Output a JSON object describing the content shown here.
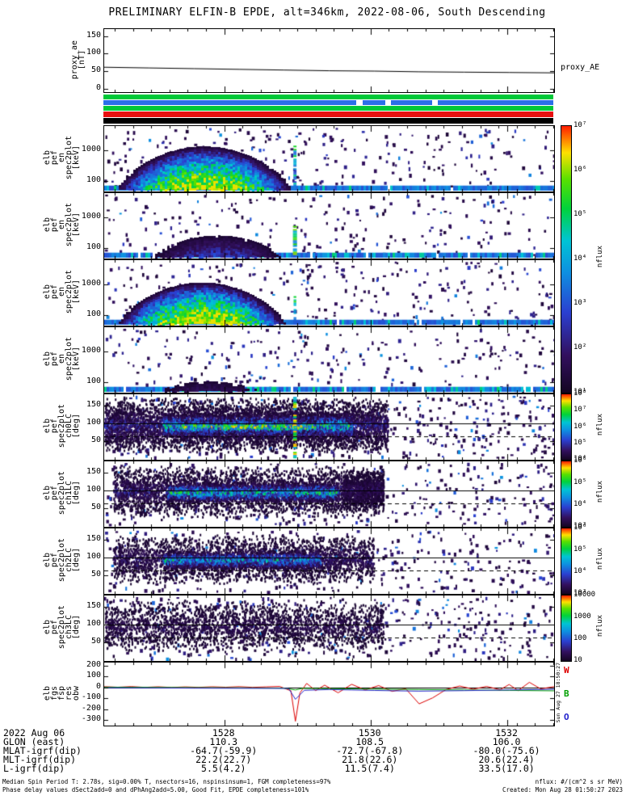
{
  "title": "PRELIMINARY ELFIN-B EPDE, alt=346km, 2022-08-06, South Descending",
  "proxy_right_label": "proxy_AE",
  "side_timestamp": "Sun Aug 27 18:50:27",
  "strips": [
    {
      "name": "quality-bar-green-1",
      "color": "#00c838",
      "segments": [
        [
          0,
          1
        ]
      ]
    },
    {
      "name": "quality-bar-blue",
      "color": "#2a6fe8",
      "segments": [
        [
          0,
          0.562
        ],
        [
          0.576,
          0.626
        ],
        [
          0.64,
          0.73
        ],
        [
          0.744,
          1
        ]
      ]
    },
    {
      "name": "quality-bar-green-2",
      "color": "#00c838",
      "segments": [
        [
          0,
          1
        ]
      ]
    },
    {
      "name": "quality-bar-red",
      "color": "#e81010",
      "segments": [
        [
          0,
          1
        ]
      ]
    },
    {
      "name": "quality-bar-black",
      "color": "#000000",
      "segments": [
        [
          0,
          1
        ]
      ]
    }
  ],
  "xaxis": {
    "date_label": "2022 Aug 06",
    "ticks": [
      {
        "label": "1528",
        "f": 0.267
      },
      {
        "label": "1530",
        "f": 0.592
      },
      {
        "label": "1532",
        "f": 0.896
      }
    ],
    "rows": [
      {
        "label": "GLON (east)",
        "values": [
          "110.3",
          "108.5",
          "106.0"
        ]
      },
      {
        "label": "MLAT-igrf(dip)",
        "values": [
          "-64.7(-59.9)",
          "-72.7(-67.8)",
          "-80.0(-75.6)"
        ]
      },
      {
        "label": "MLT-igrf(dip)",
        "values": [
          "22.2(22.7)",
          "21.8(22.6)",
          "20.6(22.4)"
        ]
      },
      {
        "label": "L-igrf(dip)",
        "values": [
          "5.5(4.2)",
          "11.5(7.4)",
          "33.5(17.0)"
        ]
      }
    ]
  },
  "colorbars": [
    {
      "span": [
        "p1",
        "p4"
      ],
      "ticks": [
        "10⁷",
        "10⁶",
        "10⁵",
        "10⁴",
        "10³",
        "10²",
        "10¹"
      ],
      "label": "nflux"
    },
    {
      "span": [
        "p5",
        "p5"
      ],
      "ticks": [
        "10⁸",
        "10⁷",
        "10⁶",
        "10⁵",
        "10⁴"
      ],
      "label": "nflux"
    },
    {
      "span": [
        "p6",
        "p6"
      ],
      "ticks": [
        "10⁶",
        "10⁵",
        "10⁴",
        "10³"
      ],
      "label": "nflux"
    },
    {
      "span": [
        "p7",
        "p7"
      ],
      "ticks": [
        "10⁶",
        "10⁵",
        "10⁴",
        "10³"
      ],
      "label": "nflux"
    },
    {
      "span": [
        "p8",
        "p8"
      ],
      "ticks": [
        "10000",
        "1000",
        "100",
        "10"
      ],
      "label": "nflux"
    }
  ],
  "footer": {
    "line1": "Median Spin Period T: 2.78s, sig=0.00% T, nsectors=16, nspinsinsum=1, FGM completeness=97%",
    "line2": "Phase delay values dSect2add=0 and dPhAng2add=5.00, Good Fit, EPDE completeness=101%",
    "units": "nflux: #/(cm^2 s sr MeV)",
    "created": "Created: Mon Aug 28 01:50:27 2023"
  },
  "chart_data": [
    {
      "id": "proxy",
      "type": "line",
      "ylabel_words": [
        "proxy_ae",
        "[nT]"
      ],
      "ylim": [
        -10,
        170
      ],
      "yticks": [
        {
          "label": "150",
          "v": 150
        },
        {
          "label": "100",
          "v": 100
        },
        {
          "label": "50",
          "v": 50
        },
        {
          "label": "0",
          "v": 0
        }
      ],
      "series": [
        {
          "name": "proxy_AE",
          "color": "#000000",
          "points": [
            [
              0,
              61
            ],
            [
              0.1,
              59
            ],
            [
              0.2,
              57
            ],
            [
              0.3,
              55
            ],
            [
              0.4,
              53
            ],
            [
              0.5,
              51
            ],
            [
              0.6,
              50
            ],
            [
              0.7,
              48
            ],
            [
              0.8,
              47
            ],
            [
              0.9,
              46
            ],
            [
              1,
              45
            ]
          ]
        }
      ]
    },
    {
      "id": "p1",
      "type": "heatmap",
      "seed": 11,
      "ylabel_words": [
        "elb",
        "pef",
        "en",
        "spec2plot",
        "[keV]"
      ],
      "yscale": "log",
      "yunits": "keV",
      "ylim": [
        50,
        6000
      ],
      "yticks": [
        {
          "label": "1000",
          "f": 0.37
        },
        {
          "label": "100",
          "f": 0.845
        }
      ],
      "features": [
        {
          "type": "speckle",
          "density": 0.055
        },
        {
          "type": "bband",
          "y0": 0.91,
          "cyan": 0.1
        },
        {
          "type": "dome",
          "cx": 0.22,
          "rx": 0.205,
          "top": 0.28,
          "peak": 0.92
        },
        {
          "type": "vstripe",
          "x": 0.424,
          "w": 0.007,
          "y0": 0.3,
          "y1": 0.92,
          "peak": 0.72
        }
      ]
    },
    {
      "id": "p2",
      "type": "heatmap",
      "seed": 22,
      "ylabel_words": [
        "elb",
        "pef",
        "en",
        "spec2plot",
        "[keV]"
      ],
      "yscale": "log",
      "yunits": "keV",
      "ylim": [
        50,
        6000
      ],
      "yticks": [
        {
          "label": "1000",
          "f": 0.37
        },
        {
          "label": "100",
          "f": 0.845
        }
      ],
      "features": [
        {
          "type": "speckle",
          "density": 0.045
        },
        {
          "type": "bband",
          "y0": 0.91,
          "cyan": 0.2
        },
        {
          "type": "dome",
          "cx": 0.25,
          "rx": 0.16,
          "top": 0.58,
          "peak": 0.42
        },
        {
          "type": "vstripe",
          "x": 0.424,
          "w": 0.009,
          "y0": 0.5,
          "y1": 0.93,
          "peak": 0.9
        }
      ]
    },
    {
      "id": "p3",
      "type": "heatmap",
      "seed": 33,
      "ylabel_words": [
        "elb",
        "pef",
        "en",
        "spec2plot",
        "[keV]"
      ],
      "yscale": "log",
      "yunits": "keV",
      "ylim": [
        50,
        6000
      ],
      "yticks": [
        {
          "label": "1000",
          "f": 0.37
        },
        {
          "label": "100",
          "f": 0.845
        }
      ],
      "features": [
        {
          "type": "speckle",
          "density": 0.055
        },
        {
          "type": "bband",
          "y0": 0.91,
          "cyan": 0.12
        },
        {
          "type": "dome",
          "cx": 0.215,
          "rx": 0.195,
          "top": 0.31,
          "peak": 0.95
        },
        {
          "type": "vstripe",
          "x": 0.424,
          "w": 0.006,
          "y0": 0.55,
          "y1": 0.92,
          "peak": 0.8
        }
      ]
    },
    {
      "id": "p4",
      "type": "heatmap",
      "seed": 44,
      "ylabel_words": [
        "elb",
        "pef",
        "en",
        "spec2plot",
        "[keV]"
      ],
      "yscale": "log",
      "yunits": "keV",
      "ylim": [
        50,
        6000
      ],
      "yticks": [
        {
          "label": "1000",
          "f": 0.37
        },
        {
          "label": "100",
          "f": 0.845
        }
      ],
      "features": [
        {
          "type": "speckle",
          "density": 0.05
        },
        {
          "type": "bband",
          "y0": 0.91,
          "cyan": 0.28
        },
        {
          "type": "dome",
          "cx": 0.23,
          "rx": 0.14,
          "top": 0.76,
          "peak": 0.3
        }
      ]
    },
    {
      "id": "p5",
      "type": "heatmap",
      "seed": 55,
      "ylabel_words": [
        "elb",
        "pef",
        "spec2plot",
        "ch0LC",
        "[deg]"
      ],
      "yunits": "deg",
      "ylim": [
        0,
        180
      ],
      "yticks": [
        {
          "label": "150",
          "f": 0.167
        },
        {
          "label": "100",
          "f": 0.444
        },
        {
          "label": "50",
          "f": 0.722
        }
      ],
      "features": [
        {
          "type": "speckle",
          "density": 0.1
        },
        {
          "type": "pband",
          "x0": 0.0,
          "x1": 0.63,
          "yc": 0.46,
          "yr": 0.42,
          "density": 1.0,
          "peak": 0.32
        },
        {
          "type": "pband",
          "x0": 0.13,
          "x1": 0.55,
          "yc": 0.47,
          "yr": 0.2,
          "density": 2.0,
          "peak": 0.62
        },
        {
          "type": "pband",
          "x0": 0.17,
          "x1": 0.47,
          "yc": 0.48,
          "yr": 0.1,
          "density": 2.2,
          "peak": 0.78
        },
        {
          "type": "vstripe",
          "x": 0.424,
          "w": 0.008,
          "y0": 0.04,
          "y1": 0.96,
          "peak": 0.88
        },
        {
          "type": "hline",
          "y": 0.444
        },
        {
          "type": "hline",
          "y": 0.64,
          "dash": true
        }
      ]
    },
    {
      "id": "p6",
      "type": "heatmap",
      "seed": 66,
      "ylabel_words": [
        "elb",
        "pef",
        "spec2plot",
        "ch1LC",
        "[deg]"
      ],
      "yunits": "deg",
      "ylim": [
        0,
        180
      ],
      "yticks": [
        {
          "label": "150",
          "f": 0.167
        },
        {
          "label": "100",
          "f": 0.444
        },
        {
          "label": "50",
          "f": 0.722
        }
      ],
      "features": [
        {
          "type": "speckle",
          "density": 0.085
        },
        {
          "type": "pband",
          "x0": 0.02,
          "x1": 0.62,
          "yc": 0.45,
          "yr": 0.4,
          "density": 0.7,
          "peak": 0.3
        },
        {
          "type": "pband",
          "x0": 0.14,
          "x1": 0.52,
          "yc": 0.46,
          "yr": 0.16,
          "density": 1.8,
          "peak": 0.6
        },
        {
          "type": "pband",
          "x0": 0.53,
          "x1": 0.62,
          "yc": 0.42,
          "yr": 0.32,
          "density": 1.2,
          "peak": 0.26
        },
        {
          "type": "hline",
          "y": 0.444
        },
        {
          "type": "hline",
          "y": 0.64,
          "dash": true
        }
      ]
    },
    {
      "id": "p7",
      "type": "heatmap",
      "seed": 77,
      "ylabel_words": [
        "elb",
        "pef",
        "spec2plot",
        "ch2LC",
        "[deg]"
      ],
      "yunits": "deg",
      "ylim": [
        0,
        180
      ],
      "yticks": [
        {
          "label": "150",
          "f": 0.167
        },
        {
          "label": "100",
          "f": 0.444
        },
        {
          "label": "50",
          "f": 0.722
        }
      ],
      "features": [
        {
          "type": "speckle",
          "density": 0.075
        },
        {
          "type": "pband",
          "x0": 0.02,
          "x1": 0.6,
          "yc": 0.46,
          "yr": 0.38,
          "density": 0.6,
          "peak": 0.28
        },
        {
          "type": "pband",
          "x0": 0.13,
          "x1": 0.48,
          "yc": 0.47,
          "yr": 0.15,
          "density": 1.6,
          "peak": 0.56
        },
        {
          "type": "hline",
          "y": 0.444
        },
        {
          "type": "hline",
          "y": 0.64,
          "dash": true
        }
      ]
    },
    {
      "id": "p8",
      "type": "heatmap",
      "seed": 88,
      "ylabel_words": [
        "elb",
        "pef",
        "spec2plot",
        "ch3LC",
        "[deg]"
      ],
      "yunits": "deg",
      "ylim": [
        0,
        180
      ],
      "yticks": [
        {
          "label": "150",
          "f": 0.167
        },
        {
          "label": "100",
          "f": 0.444
        },
        {
          "label": "50",
          "f": 0.722
        }
      ],
      "features": [
        {
          "type": "speckle",
          "density": 0.09
        },
        {
          "type": "pband",
          "x0": 0.0,
          "x1": 0.62,
          "yc": 0.45,
          "yr": 0.4,
          "density": 0.45,
          "peak": 0.24
        },
        {
          "type": "hline",
          "y": 0.444
        },
        {
          "type": "hline",
          "y": 0.64,
          "dash": true
        }
      ]
    },
    {
      "id": "obw",
      "type": "line",
      "ylabel_words": [
        "elb",
        "fgs",
        "fsp",
        "res",
        "obw"
      ],
      "ylim": [
        -350,
        230
      ],
      "zeroline": true,
      "yticks": [
        {
          "label": "200",
          "v": 200
        },
        {
          "label": "100",
          "v": 100
        },
        {
          "label": "0",
          "v": 0
        },
        {
          "label": "-100",
          "v": -100
        },
        {
          "label": "-200",
          "v": -200
        },
        {
          "label": "-300",
          "v": -300
        }
      ],
      "right_labels": [
        {
          "text": "W",
          "color": "#dd0000"
        },
        {
          "text": "B",
          "color": "#00a000"
        },
        {
          "text": "O",
          "color": "#2222cc"
        }
      ],
      "series": [
        {
          "name": "W",
          "color": "#dd0000",
          "points": [
            [
              0,
              8
            ],
            [
              0.03,
              3
            ],
            [
              0.06,
              9
            ],
            [
              0.09,
              2
            ],
            [
              0.12,
              7
            ],
            [
              0.15,
              1
            ],
            [
              0.18,
              6
            ],
            [
              0.21,
              2
            ],
            [
              0.24,
              7
            ],
            [
              0.27,
              3
            ],
            [
              0.3,
              8
            ],
            [
              0.33,
              2
            ],
            [
              0.36,
              6
            ],
            [
              0.39,
              10
            ],
            [
              0.415,
              -30
            ],
            [
              0.425,
              -310
            ],
            [
              0.435,
              -50
            ],
            [
              0.45,
              38
            ],
            [
              0.47,
              -28
            ],
            [
              0.49,
              22
            ],
            [
              0.52,
              -48
            ],
            [
              0.55,
              30
            ],
            [
              0.58,
              -22
            ],
            [
              0.61,
              18
            ],
            [
              0.64,
              -35
            ],
            [
              0.67,
              -10
            ],
            [
              0.7,
              -150
            ],
            [
              0.73,
              -95
            ],
            [
              0.76,
              -18
            ],
            [
              0.79,
              14
            ],
            [
              0.82,
              -15
            ],
            [
              0.85,
              10
            ],
            [
              0.88,
              -20
            ],
            [
              0.9,
              28
            ],
            [
              0.92,
              -28
            ],
            [
              0.945,
              48
            ],
            [
              0.97,
              -12
            ],
            [
              1,
              8
            ]
          ]
        },
        {
          "name": "B",
          "color": "#00a000",
          "points": [
            [
              0,
              4
            ],
            [
              0.1,
              2
            ],
            [
              0.2,
              0
            ],
            [
              0.3,
              -2
            ],
            [
              0.4,
              -5
            ],
            [
              0.425,
              -22
            ],
            [
              0.44,
              -8
            ],
            [
              0.5,
              -10
            ],
            [
              0.6,
              -14
            ],
            [
              0.7,
              -18
            ],
            [
              0.8,
              -22
            ],
            [
              0.9,
              -26
            ],
            [
              1,
              -30
            ]
          ]
        },
        {
          "name": "O",
          "color": "#2222cc",
          "points": [
            [
              0,
              -2
            ],
            [
              0.1,
              -3
            ],
            [
              0.2,
              -5
            ],
            [
              0.3,
              -6
            ],
            [
              0.41,
              -8
            ],
            [
              0.425,
              -108
            ],
            [
              0.445,
              -25
            ],
            [
              0.5,
              -18
            ],
            [
              0.55,
              -22
            ],
            [
              0.6,
              -26
            ],
            [
              0.65,
              -30
            ],
            [
              0.7,
              -33
            ],
            [
              0.8,
              -28
            ],
            [
              0.9,
              -22
            ],
            [
              1,
              -16
            ]
          ]
        }
      ]
    }
  ]
}
